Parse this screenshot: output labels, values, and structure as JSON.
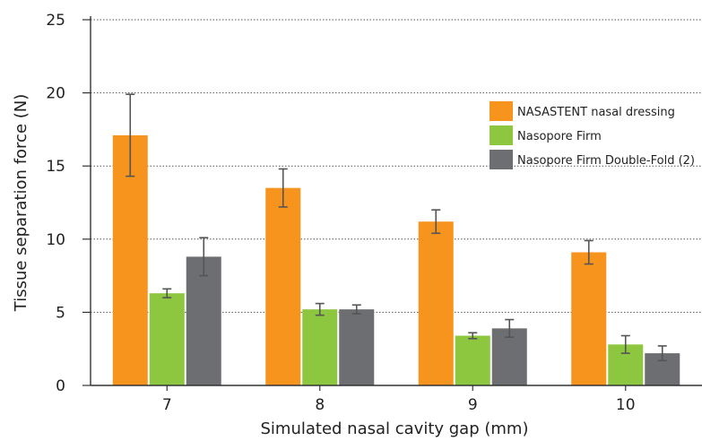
{
  "chart_data": {
    "type": "bar",
    "xlabel": "Simulated nasal cavity gap (mm)",
    "ylabel": "Tissue separation force (N)",
    "categories": [
      "7",
      "8",
      "9",
      "10"
    ],
    "ylim": [
      0,
      25
    ],
    "yticks": [
      0,
      5,
      10,
      15,
      20,
      25
    ],
    "grid": "horizontal dotted",
    "legend_position": "top-right",
    "error_bars": true,
    "series": [
      {
        "name": "NASASTENT nasal dressing",
        "color": "#F7941D",
        "values": [
          17.1,
          13.5,
          11.2,
          9.1
        ],
        "errors": [
          2.8,
          1.3,
          0.8,
          0.8
        ]
      },
      {
        "name": "Nasopore Firm",
        "color": "#8DC63F",
        "values": [
          6.3,
          5.2,
          3.4,
          2.8
        ],
        "errors": [
          0.3,
          0.4,
          0.2,
          0.6
        ]
      },
      {
        "name": "Nasopore Firm Double-Fold (2)",
        "color": "#6D6E71",
        "values": [
          8.8,
          5.2,
          3.9,
          2.2
        ],
        "errors": [
          1.3,
          0.3,
          0.6,
          0.5
        ]
      }
    ]
  }
}
